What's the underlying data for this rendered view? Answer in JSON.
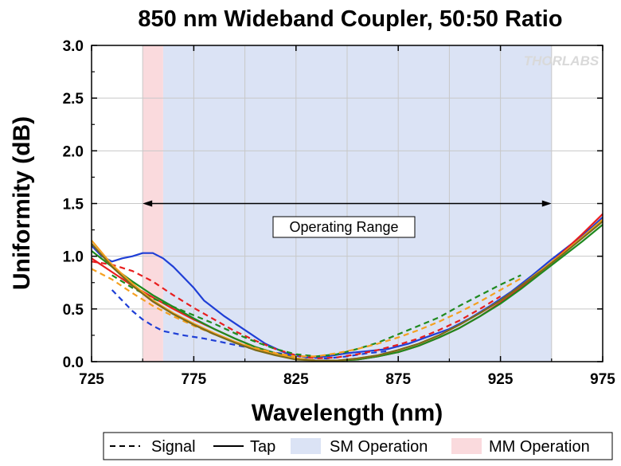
{
  "chart_data": {
    "type": "line",
    "title": "850 nm Wideband Coupler, 50:50 Ratio",
    "xlabel": "Wavelength (nm)",
    "ylabel": "Uniformity (dB)",
    "xlim": [
      725,
      975
    ],
    "ylim": [
      0,
      3.0
    ],
    "xticks": [
      "725",
      "775",
      "825",
      "875",
      "925",
      "975"
    ],
    "yticks": [
      "0.0",
      "0.5",
      "1.0",
      "1.5",
      "2.0",
      "2.5",
      "3.0"
    ],
    "grid": true,
    "watermark": "THORLABS",
    "annotation": {
      "text": "Operating Range",
      "arrow_from": 750,
      "arrow_to": 950,
      "y": 1.5
    },
    "bands": [
      {
        "name": "SM Operation",
        "x0": 760,
        "x1": 950,
        "color": "#dbe3f5"
      },
      {
        "name": "MM Operation",
        "x0": 750,
        "x1": 760,
        "color": "#fadadd"
      }
    ],
    "legend": {
      "position": "bottom",
      "entries": [
        {
          "label": "Signal",
          "kind": "dashed"
        },
        {
          "label": "Tap",
          "kind": "solid"
        },
        {
          "label": "SM Operation",
          "kind": "swatch",
          "color": "#dbe3f5"
        },
        {
          "label": "MM Operation",
          "kind": "swatch",
          "color": "#fadadd"
        }
      ]
    },
    "series": [
      {
        "color": "#1f3fd6",
        "style": "solid",
        "x": [
          725,
          730,
          735,
          740,
          745,
          750,
          755,
          760,
          765,
          770,
          775,
          780,
          790,
          800,
          810,
          820,
          830,
          840,
          850,
          860,
          870,
          880,
          890,
          900,
          910,
          920,
          930,
          940,
          950,
          960,
          970,
          975
        ],
        "y": [
          1.1,
          1.0,
          0.95,
          0.98,
          1.0,
          1.03,
          1.03,
          0.98,
          0.9,
          0.8,
          0.7,
          0.58,
          0.43,
          0.3,
          0.17,
          0.08,
          0.04,
          0.05,
          0.08,
          0.1,
          0.12,
          0.17,
          0.24,
          0.31,
          0.41,
          0.53,
          0.66,
          0.81,
          0.97,
          1.12,
          1.28,
          1.37
        ]
      },
      {
        "color": "#1f3fd6",
        "style": "dashed",
        "x": [
          735,
          740,
          745,
          750,
          755,
          760,
          770,
          780,
          790,
          800,
          810,
          820,
          830,
          840,
          850,
          860,
          870
        ],
        "y": [
          0.68,
          0.58,
          0.48,
          0.4,
          0.34,
          0.29,
          0.25,
          0.22,
          0.18,
          0.14,
          0.1,
          0.07,
          0.04,
          0.03,
          0.05,
          0.08,
          0.1
        ]
      },
      {
        "color": "#e81e1e",
        "style": "solid",
        "x": [
          725,
          735,
          745,
          755,
          765,
          775,
          785,
          795,
          805,
          815,
          825,
          835,
          845,
          855,
          865,
          875,
          885,
          895,
          905,
          915,
          925,
          935,
          945,
          955,
          965,
          975
        ],
        "y": [
          0.98,
          0.85,
          0.72,
          0.61,
          0.5,
          0.4,
          0.31,
          0.22,
          0.14,
          0.08,
          0.03,
          0.01,
          0.01,
          0.02,
          0.05,
          0.09,
          0.15,
          0.23,
          0.32,
          0.43,
          0.56,
          0.7,
          0.86,
          1.03,
          1.21,
          1.4
        ]
      },
      {
        "color": "#e81e1e",
        "style": "dashed",
        "x": [
          725,
          735,
          745,
          755,
          765,
          775,
          785,
          795,
          805,
          815,
          825,
          835,
          845,
          855,
          865,
          875,
          885,
          895,
          905,
          915,
          925
        ],
        "y": [
          0.95,
          0.92,
          0.86,
          0.76,
          0.63,
          0.51,
          0.4,
          0.29,
          0.2,
          0.12,
          0.06,
          0.03,
          0.04,
          0.07,
          0.11,
          0.16,
          0.22,
          0.3,
          0.39,
          0.5,
          0.62
        ]
      },
      {
        "color": "#1f8a1f",
        "style": "solid",
        "x": [
          725,
          735,
          745,
          755,
          765,
          775,
          785,
          795,
          805,
          815,
          825,
          835,
          845,
          855,
          865,
          875,
          885,
          895,
          905,
          915,
          925,
          935,
          945,
          955,
          965,
          975
        ],
        "y": [
          1.05,
          0.9,
          0.76,
          0.63,
          0.52,
          0.41,
          0.31,
          0.22,
          0.14,
          0.08,
          0.03,
          0.01,
          0.01,
          0.02,
          0.05,
          0.09,
          0.15,
          0.23,
          0.32,
          0.43,
          0.55,
          0.69,
          0.84,
          0.99,
          1.14,
          1.3
        ]
      },
      {
        "color": "#1f8a1f",
        "style": "dashed",
        "x": [
          735,
          745,
          755,
          765,
          775,
          785,
          795,
          805,
          815,
          825,
          835,
          845,
          855,
          865,
          875,
          885,
          895,
          905,
          915,
          925,
          935
        ],
        "y": [
          0.82,
          0.7,
          0.6,
          0.52,
          0.44,
          0.36,
          0.27,
          0.19,
          0.12,
          0.07,
          0.05,
          0.07,
          0.12,
          0.18,
          0.26,
          0.34,
          0.42,
          0.53,
          0.63,
          0.73,
          0.82
        ]
      },
      {
        "color": "#f5a020",
        "style": "solid",
        "x": [
          725,
          735,
          745,
          755,
          765,
          775,
          785,
          795,
          805,
          815,
          825,
          835,
          845,
          855,
          865,
          875,
          885,
          895,
          905,
          915,
          925,
          935,
          945,
          955,
          965,
          975
        ],
        "y": [
          1.15,
          0.92,
          0.74,
          0.58,
          0.46,
          0.36,
          0.27,
          0.19,
          0.12,
          0.07,
          0.03,
          0.01,
          0.01,
          0.03,
          0.06,
          0.11,
          0.17,
          0.25,
          0.35,
          0.46,
          0.58,
          0.72,
          0.87,
          1.02,
          1.18,
          1.35
        ]
      },
      {
        "color": "#f5a020",
        "style": "dashed",
        "x": [
          725,
          735,
          745,
          755,
          765,
          775,
          785,
          795,
          805,
          815,
          825,
          835,
          845,
          855,
          865,
          875,
          885,
          895,
          905,
          915,
          925,
          935
        ],
        "y": [
          0.88,
          0.78,
          0.65,
          0.53,
          0.43,
          0.34,
          0.26,
          0.19,
          0.13,
          0.08,
          0.05,
          0.05,
          0.08,
          0.12,
          0.17,
          0.23,
          0.3,
          0.38,
          0.47,
          0.57,
          0.68,
          0.79
        ]
      },
      {
        "color": "#7a6a1a",
        "style": "solid",
        "x": [
          725,
          735,
          745,
          755,
          765,
          775,
          785,
          795,
          805,
          815,
          825,
          835,
          845,
          855,
          865,
          875,
          885,
          895,
          905,
          915,
          925,
          935,
          945,
          955,
          965,
          975
        ],
        "y": [
          1.12,
          0.9,
          0.72,
          0.57,
          0.45,
          0.35,
          0.26,
          0.18,
          0.11,
          0.06,
          0.02,
          0.01,
          0.01,
          0.03,
          0.06,
          0.11,
          0.17,
          0.25,
          0.35,
          0.46,
          0.58,
          0.72,
          0.86,
          1.01,
          1.17,
          1.33
        ]
      }
    ]
  }
}
